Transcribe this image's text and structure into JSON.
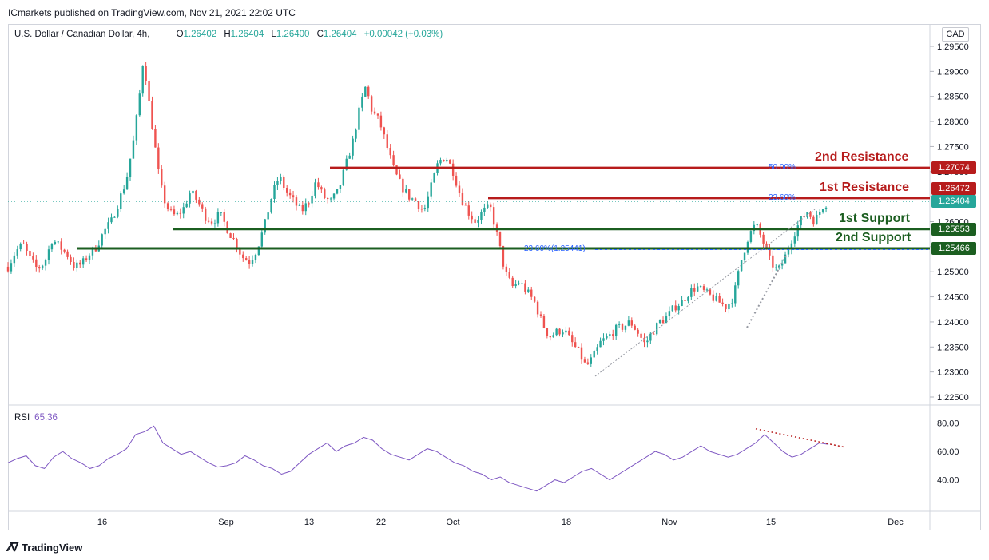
{
  "header": {
    "published_by": "ICmarkets published on TradingView.com, Nov 21, 2021 22:02 UTC"
  },
  "legend": {
    "symbol": "U.S. Dollar / Canadian Dollar, 4h,",
    "open_key": "O",
    "open": "1.26402",
    "high_key": "H",
    "high": "1.26404",
    "low_key": "L",
    "low": "1.26400",
    "close_key": "C",
    "close": "1.26404",
    "change": "+0.00042 (+0.03%)"
  },
  "currency_label": "CAD",
  "rsi_legend": {
    "name": "RSI",
    "value": "65.36"
  },
  "brand": {
    "name": "TradingView"
  },
  "colors": {
    "up": "#26a69a",
    "down": "#ef5350",
    "resistance": "#b71c1c",
    "support": "#1b5e20",
    "rsi": "#7e57c2",
    "fib": "#2962ff"
  },
  "annotations": {
    "r2": "2nd Resistance",
    "r1": "1st Resistance",
    "s1": "1st Support",
    "s2": "2nd Support",
    "fib_50": "50.00%",
    "fib_236_upper": "23.60%",
    "fib_236_lower": "23.60%(1.25441)"
  },
  "price_tags": {
    "r2": "1.27074",
    "r1": "1.26472",
    "last": "1.26404",
    "s1": "1.25853",
    "s2": "1.25466"
  },
  "chart_data": [
    {
      "type": "candlestick",
      "title": "U.S. Dollar / Canadian Dollar, 4h",
      "price_axis": {
        "ticks": [
          "1.29500",
          "1.29000",
          "1.28500",
          "1.28000",
          "1.27500",
          "1.27000",
          "1.26500",
          "1.26000",
          "1.25500",
          "1.25000",
          "1.24500",
          "1.24000",
          "1.23500",
          "1.23000",
          "1.22500"
        ],
        "range": [
          1.2225,
          1.2975
        ]
      },
      "time_axis": {
        "ticks": [
          "16",
          "Sep",
          "13",
          "22",
          "Oct",
          "18",
          "Nov",
          "15",
          "Dec"
        ]
      },
      "close_path": [
        [
          0,
          1.251
        ],
        [
          0.8,
          1.254
        ],
        [
          1.6,
          1.2555
        ],
        [
          2.4,
          1.2525
        ],
        [
          3.2,
          1.2505
        ],
        [
          4,
          1.252
        ],
        [
          4.8,
          1.2565
        ],
        [
          5.6,
          1.255
        ],
        [
          6.4,
          1.2535
        ],
        [
          7.2,
          1.251
        ],
        [
          8,
          1.2515
        ],
        [
          8.8,
          1.2535
        ],
        [
          9.6,
          1.255
        ],
        [
          10.4,
          1.258
        ],
        [
          11.2,
          1.26
        ],
        [
          12,
          1.264
        ],
        [
          12.8,
          1.268
        ],
        [
          13.6,
          1.276
        ],
        [
          14.2,
          1.284
        ],
        [
          14.7,
          1.293
        ],
        [
          15.2,
          1.285
        ],
        [
          15.8,
          1.277
        ],
        [
          16.3,
          1.27
        ],
        [
          16.8,
          1.265
        ],
        [
          17.5,
          1.262
        ],
        [
          18.2,
          1.261
        ],
        [
          19,
          1.2625
        ],
        [
          19.8,
          1.266
        ],
        [
          20.6,
          1.264
        ],
        [
          21.4,
          1.261
        ],
        [
          22.2,
          1.26
        ],
        [
          23,
          1.2615
        ],
        [
          23.8,
          1.2585
        ],
        [
          24.6,
          1.256
        ],
        [
          25.4,
          1.253
        ],
        [
          26.2,
          1.252
        ],
        [
          27,
          1.2545
        ],
        [
          27.8,
          1.259
        ],
        [
          28.6,
          1.265
        ],
        [
          29.4,
          1.269
        ],
        [
          30.2,
          1.266
        ],
        [
          31,
          1.264
        ],
        [
          31.8,
          1.262
        ],
        [
          32.6,
          1.264
        ],
        [
          33.4,
          1.268
        ],
        [
          34.2,
          1.265
        ],
        [
          35,
          1.264
        ],
        [
          35.8,
          1.266
        ],
        [
          36.6,
          1.271
        ],
        [
          37.4,
          1.276
        ],
        [
          38.2,
          1.283
        ],
        [
          38.8,
          1.287
        ],
        [
          39.5,
          1.282
        ],
        [
          40.3,
          1.28
        ],
        [
          41.1,
          1.275
        ],
        [
          41.9,
          1.27
        ],
        [
          42.7,
          1.267
        ],
        [
          43.5,
          1.265
        ],
        [
          44.3,
          1.264
        ],
        [
          45.1,
          1.262
        ],
        [
          45.9,
          1.267
        ],
        [
          46.7,
          1.272
        ],
        [
          47.5,
          1.273
        ],
        [
          48.3,
          1.27
        ],
        [
          49.1,
          1.265
        ],
        [
          49.9,
          1.262
        ],
        [
          50.7,
          1.26
        ],
        [
          51.5,
          1.262
        ],
        [
          52.3,
          1.263
        ],
        [
          53.1,
          1.257
        ],
        [
          53.9,
          1.25
        ],
        [
          54.7,
          1.247
        ],
        [
          55.5,
          1.248
        ],
        [
          56.3,
          1.246
        ],
        [
          57.1,
          1.244
        ],
        [
          57.9,
          1.24
        ],
        [
          58.7,
          1.237
        ],
        [
          59.5,
          1.238
        ],
        [
          60.3,
          1.2385
        ],
        [
          61.1,
          1.236
        ],
        [
          61.9,
          1.234
        ],
        [
          62.7,
          1.231
        ],
        [
          63.5,
          1.233
        ],
        [
          64.3,
          1.236
        ],
        [
          65.1,
          1.237
        ],
        [
          65.9,
          1.2385
        ],
        [
          66.7,
          1.239
        ],
        [
          67.5,
          1.24
        ],
        [
          68.3,
          1.238
        ],
        [
          69.1,
          1.2355
        ],
        [
          69.9,
          1.238
        ],
        [
          70.7,
          1.24
        ],
        [
          71.5,
          1.241
        ],
        [
          72.3,
          1.243
        ],
        [
          73.1,
          1.244
        ],
        [
          73.9,
          1.246
        ],
        [
          74.7,
          1.247
        ],
        [
          75.5,
          1.246
        ],
        [
          76.3,
          1.245
        ],
        [
          77.1,
          1.244
        ],
        [
          77.9,
          1.243
        ],
        [
          78.7,
          1.245
        ],
        [
          79.5,
          1.252
        ],
        [
          80.3,
          1.257
        ],
        [
          81.1,
          1.2595
        ],
        [
          81.9,
          1.256
        ],
        [
          82.7,
          1.252
        ],
        [
          83.5,
          1.25
        ],
        [
          84.3,
          1.253
        ],
        [
          85.1,
          1.257
        ],
        [
          85.9,
          1.26
        ],
        [
          86.7,
          1.262
        ],
        [
          87.5,
          1.26
        ],
        [
          88.3,
          1.263
        ],
        [
          89,
          1.264
        ]
      ],
      "horizontal_levels": [
        {
          "name": "2nd Resistance",
          "price": 1.27074
        },
        {
          "name": "1st Resistance",
          "price": 1.26472
        },
        {
          "name": "1st Support",
          "price": 1.25853
        },
        {
          "name": "2nd Support",
          "price": 1.25466
        }
      ],
      "last_price": 1.26404
    },
    {
      "type": "line",
      "title": "RSI",
      "y_ticks": [
        "80.00",
        "60.00",
        "40.00"
      ],
      "ylim": [
        20,
        90
      ],
      "series": [
        {
          "name": "RSI",
          "values": [
            52,
            55,
            57,
            50,
            48,
            56,
            60,
            55,
            52,
            48,
            50,
            55,
            58,
            62,
            72,
            74,
            78,
            66,
            62,
            58,
            60,
            56,
            52,
            49,
            50,
            52,
            57,
            54,
            50,
            48,
            44,
            46,
            52,
            58,
            62,
            66,
            60,
            64,
            66,
            70,
            68,
            62,
            58,
            56,
            54,
            58,
            62,
            60,
            56,
            52,
            50,
            46,
            44,
            40,
            42,
            38,
            36,
            34,
            32,
            36,
            40,
            38,
            42,
            46,
            48,
            44,
            40,
            44,
            48,
            52,
            56,
            60,
            58,
            54,
            56,
            60,
            64,
            60,
            58,
            56,
            58,
            62,
            66,
            72,
            66,
            60,
            56,
            58,
            62,
            66,
            65
          ]
        }
      ]
    }
  ]
}
